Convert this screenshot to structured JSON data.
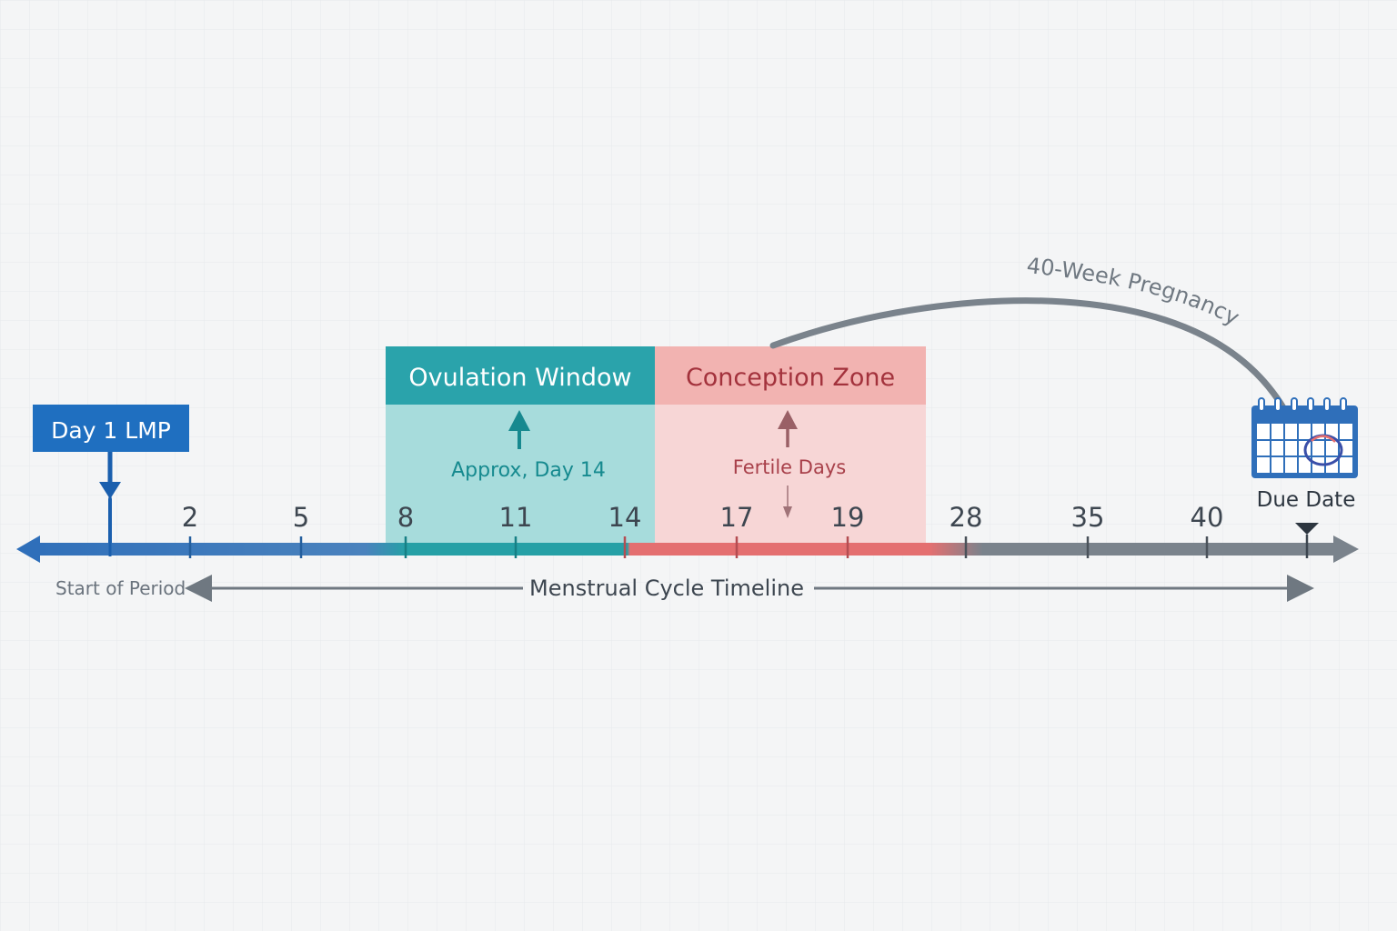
{
  "markers": {
    "lmp_label": "Day 1 LMP",
    "start_label": "Start of Period",
    "due_label": "Due Date"
  },
  "zones": {
    "ovulation": {
      "title": "Ovulation Window",
      "note": "Approx, Day 14",
      "color": "#2aa3ab"
    },
    "conception": {
      "title": "Conception Zone",
      "note": "Fertile Days",
      "color": "#f2b3b1"
    }
  },
  "ticks": [
    "2",
    "5",
    "8",
    "11",
    "14",
    "17",
    "19",
    "28",
    "35",
    "40"
  ],
  "timeline_label": "Menstrual Cycle Timeline",
  "pregnancy_label": "40-Week Pregnancy",
  "colors": {
    "blue": "#2f6fba",
    "teal": "#26a0a6",
    "red": "#e46f70",
    "gray": "#7a838c"
  }
}
